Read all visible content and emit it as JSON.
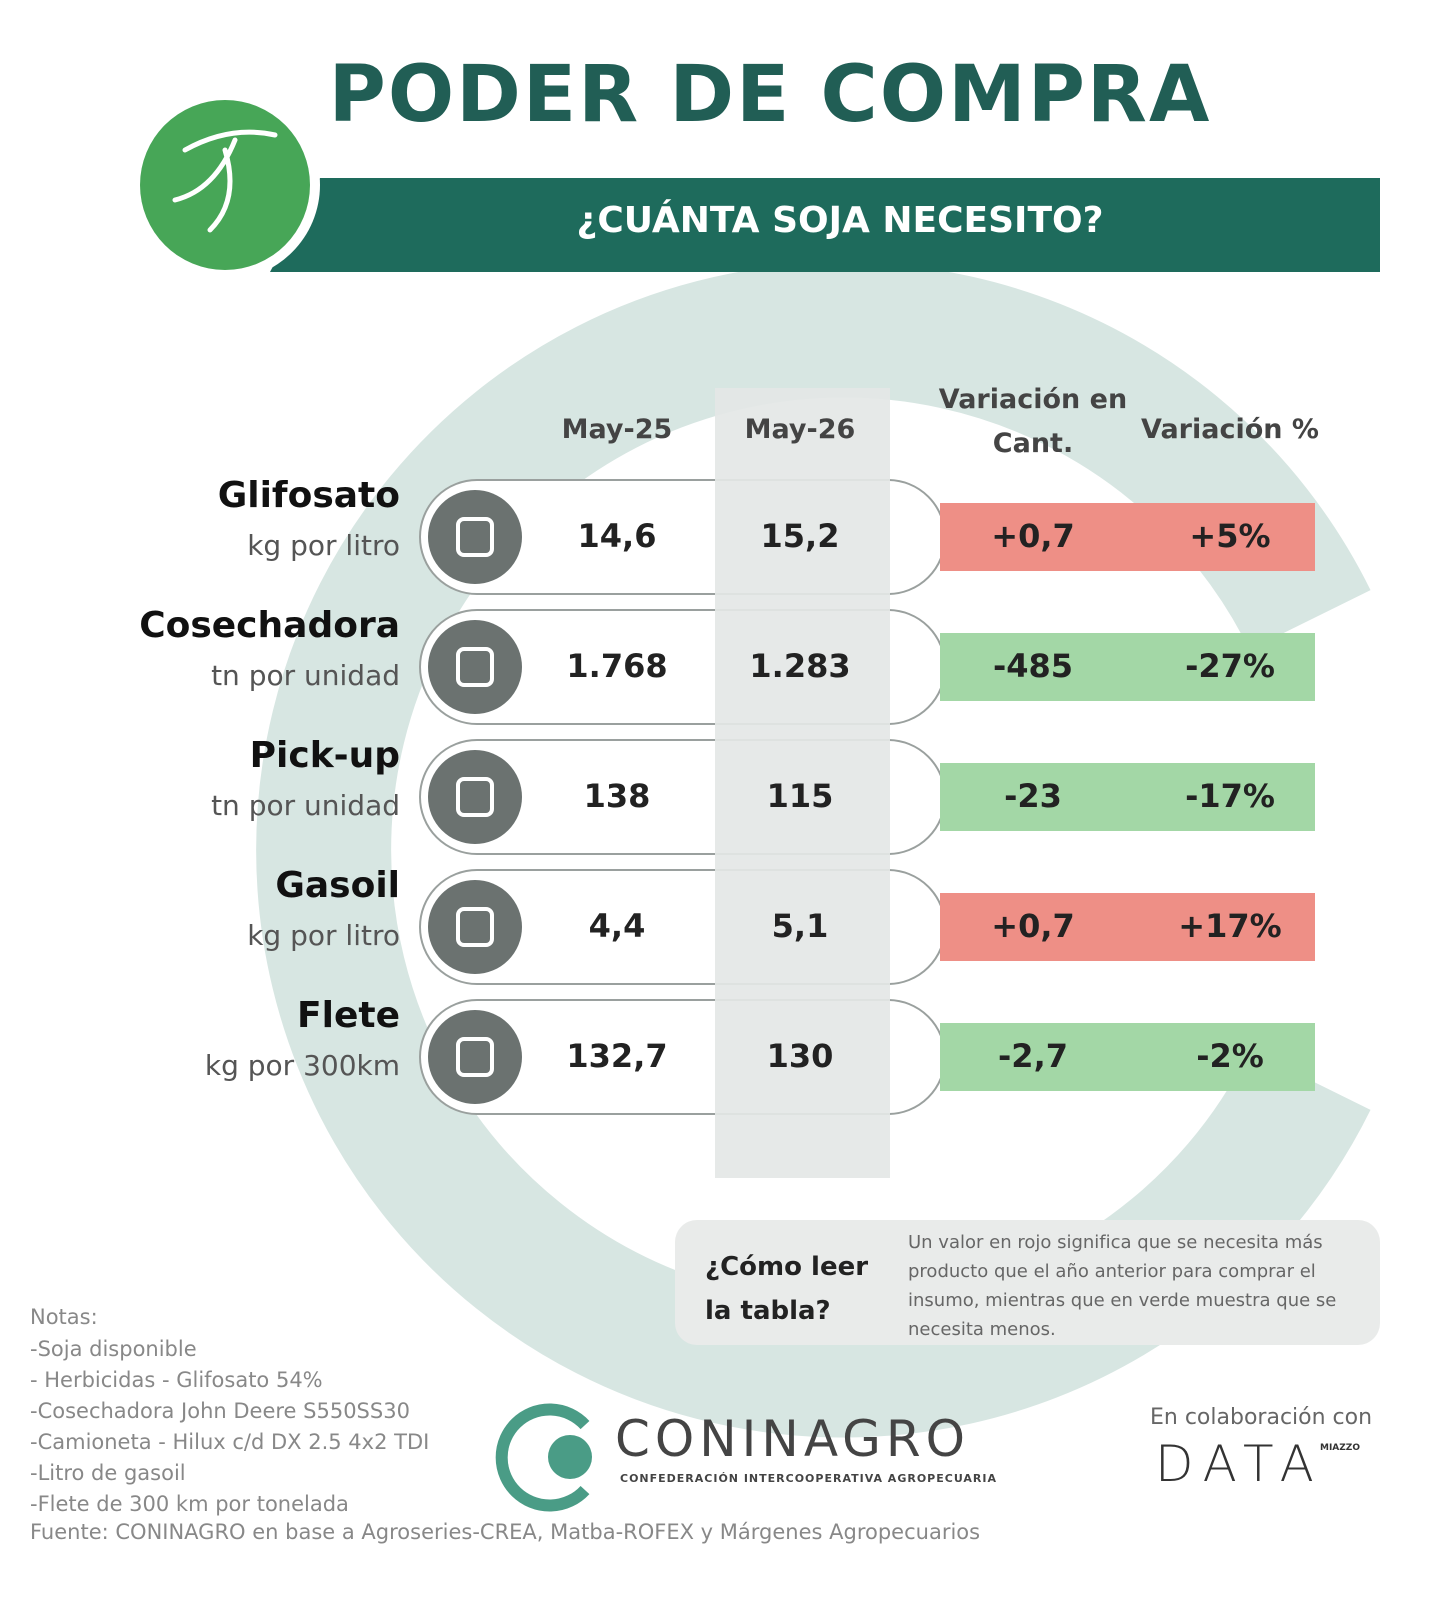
{
  "header": {
    "title": "PODER DE COMPRA",
    "subtitle": "¿CUÁNTA SOJA NECESITO?"
  },
  "table": {
    "columns": [
      "May-25",
      "May-26",
      "Variación en Cant.",
      "Variación %"
    ],
    "rows": [
      {
        "name": "Glifosato",
        "unit": "kg por litro",
        "may25": "14,6",
        "may26": "15,2",
        "change": "+0,7",
        "change_pct": "+5%",
        "color": "#ee8f86"
      },
      {
        "name": "Cosechadora",
        "unit": "tn por unidad",
        "may25": "1.768",
        "may26": "1.283",
        "change": "-485",
        "change_pct": "-27%",
        "color": "#a3d7a6"
      },
      {
        "name": "Pick-up",
        "unit": "tn por unidad",
        "may25": "138",
        "may26": "115",
        "change": "-23",
        "change_pct": "-17%",
        "color": "#a3d7a6"
      },
      {
        "name": "Gasoil",
        "unit": "kg por litro",
        "may25": "4,4",
        "may26": "5,1",
        "change": "+0,7",
        "change_pct": "+17%",
        "color": "#ee8f86"
      },
      {
        "name": "Flete",
        "unit": "kg por 300km",
        "may25": "132,7",
        "may26": "130",
        "change": "-2,7",
        "change_pct": "-2%",
        "color": "#a3d7a6"
      }
    ]
  },
  "help": {
    "question": "¿Cómo leer la tabla?",
    "text": "Un valor en rojo significa que se necesita más producto que el año anterior para comprar el insumo, mientras que en verde muestra que se necesita menos."
  },
  "notes": {
    "title": "Notas:",
    "items": [
      "-Soja disponible",
      "- Herbicidas - Glifosato 54%",
      "-Cosechadora John Deere S550SS30",
      "-Camioneta - Hilux c/d DX 2.5 4x2 TDI",
      "-Litro de gasoil",
      "-Flete de 300 km por tonelada"
    ],
    "source": "Fuente: CONINAGRO en base a Agroseries-CREA, Matba-ROFEX y Márgenes Agropecuarios"
  },
  "footer": {
    "brand": "CONINAGRO",
    "brand_subtitle": "Confederación Intercooperativa Agropecuaria",
    "collab": "En colaboración con",
    "partner": "DATA",
    "partner_tag": "MIAZZO"
  }
}
